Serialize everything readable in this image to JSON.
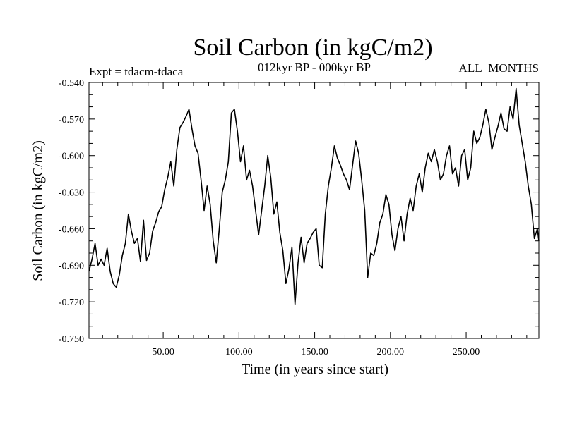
{
  "chart_data": {
    "type": "line",
    "title": "Soil Carbon (in kgC/m2)",
    "experiment": "Expt = tdacm-tdaca",
    "period": "012kyr BP - 000kyr BP",
    "months": "ALL_MONTHS",
    "xlabel": "Time (in years since start)",
    "ylabel": "Soil Carbon (in kgC/m2)",
    "xlim": [
      1,
      298
    ],
    "ylim": [
      -0.75,
      -0.54
    ],
    "xticks": [
      {
        "value": 50,
        "label": "50.00"
      },
      {
        "value": 100,
        "label": "100.00"
      },
      {
        "value": 150,
        "label": "150.00"
      },
      {
        "value": 200,
        "label": "200.00"
      },
      {
        "value": 250,
        "label": "250.00"
      }
    ],
    "yticks": [
      {
        "value": -0.54,
        "label": "-0.540"
      },
      {
        "value": -0.57,
        "label": "-0.570"
      },
      {
        "value": -0.6,
        "label": "-0.600"
      },
      {
        "value": -0.63,
        "label": "-0.630"
      },
      {
        "value": -0.66,
        "label": "-0.660"
      },
      {
        "value": -0.69,
        "label": "-0.690"
      },
      {
        "value": -0.72,
        "label": "-0.720"
      },
      {
        "value": -0.75,
        "label": "-0.750"
      }
    ],
    "series": [
      {
        "name": "soil-carbon",
        "color": "#000000",
        "x": [
          1,
          3,
          5,
          7,
          9,
          11,
          13,
          15,
          17,
          19,
          21,
          23,
          25,
          27,
          29,
          31,
          33,
          35,
          37,
          39,
          41,
          43,
          45,
          47,
          49,
          51,
          53,
          55,
          57,
          59,
          61,
          63,
          65,
          67,
          69,
          71,
          73,
          75,
          77,
          79,
          81,
          83,
          85,
          87,
          89,
          91,
          93,
          95,
          97,
          99,
          101,
          103,
          105,
          107,
          109,
          111,
          113,
          115,
          117,
          119,
          121,
          123,
          125,
          127,
          129,
          131,
          133,
          135,
          137,
          139,
          141,
          143,
          145,
          147,
          149,
          151,
          153,
          155,
          157,
          159,
          161,
          163,
          165,
          167,
          169,
          171,
          173,
          175,
          177,
          179,
          181,
          183,
          185,
          187,
          189,
          191,
          193,
          195,
          197,
          199,
          201,
          203,
          205,
          207,
          209,
          211,
          213,
          215,
          217,
          219,
          221,
          223,
          225,
          227,
          229,
          231,
          233,
          235,
          237,
          239,
          241,
          243,
          245,
          247,
          249,
          251,
          253,
          255,
          257,
          259,
          261,
          263,
          265,
          267,
          269,
          271,
          273,
          275,
          277,
          279,
          281,
          283,
          285,
          287,
          289,
          291,
          293,
          295,
          297,
          298
        ],
        "values": [
          -0.695,
          -0.685,
          -0.672,
          -0.69,
          -0.685,
          -0.69,
          -0.676,
          -0.695,
          -0.705,
          -0.708,
          -0.698,
          -0.682,
          -0.672,
          -0.648,
          -0.662,
          -0.672,
          -0.668,
          -0.687,
          -0.653,
          -0.686,
          -0.68,
          -0.662,
          -0.655,
          -0.646,
          -0.642,
          -0.628,
          -0.618,
          -0.605,
          -0.625,
          -0.595,
          -0.577,
          -0.573,
          -0.568,
          -0.562,
          -0.578,
          -0.592,
          -0.598,
          -0.62,
          -0.645,
          -0.625,
          -0.64,
          -0.67,
          -0.688,
          -0.66,
          -0.63,
          -0.62,
          -0.605,
          -0.565,
          -0.562,
          -0.58,
          -0.605,
          -0.592,
          -0.62,
          -0.612,
          -0.625,
          -0.645,
          -0.665,
          -0.645,
          -0.625,
          -0.6,
          -0.618,
          -0.648,
          -0.638,
          -0.663,
          -0.678,
          -0.705,
          -0.693,
          -0.675,
          -0.722,
          -0.688,
          -0.667,
          -0.688,
          -0.672,
          -0.668,
          -0.663,
          -0.66,
          -0.69,
          -0.692,
          -0.648,
          -0.625,
          -0.61,
          -0.592,
          -0.602,
          -0.608,
          -0.615,
          -0.62,
          -0.628,
          -0.608,
          -0.588,
          -0.598,
          -0.62,
          -0.645,
          -0.7,
          -0.68,
          -0.682,
          -0.672,
          -0.655,
          -0.648,
          -0.632,
          -0.64,
          -0.665,
          -0.678,
          -0.66,
          -0.65,
          -0.67,
          -0.648,
          -0.635,
          -0.645,
          -0.625,
          -0.615,
          -0.63,
          -0.61,
          -0.598,
          -0.605,
          -0.595,
          -0.605,
          -0.62,
          -0.615,
          -0.6,
          -0.592,
          -0.615,
          -0.61,
          -0.625,
          -0.6,
          -0.595,
          -0.62,
          -0.61,
          -0.58,
          -0.59,
          -0.585,
          -0.575,
          -0.562,
          -0.573,
          -0.595,
          -0.585,
          -0.576,
          -0.565,
          -0.578,
          -0.58,
          -0.56,
          -0.57,
          -0.545,
          -0.575,
          -0.59,
          -0.605,
          -0.625,
          -0.64,
          -0.668,
          -0.66,
          -0.67
        ]
      }
    ]
  }
}
